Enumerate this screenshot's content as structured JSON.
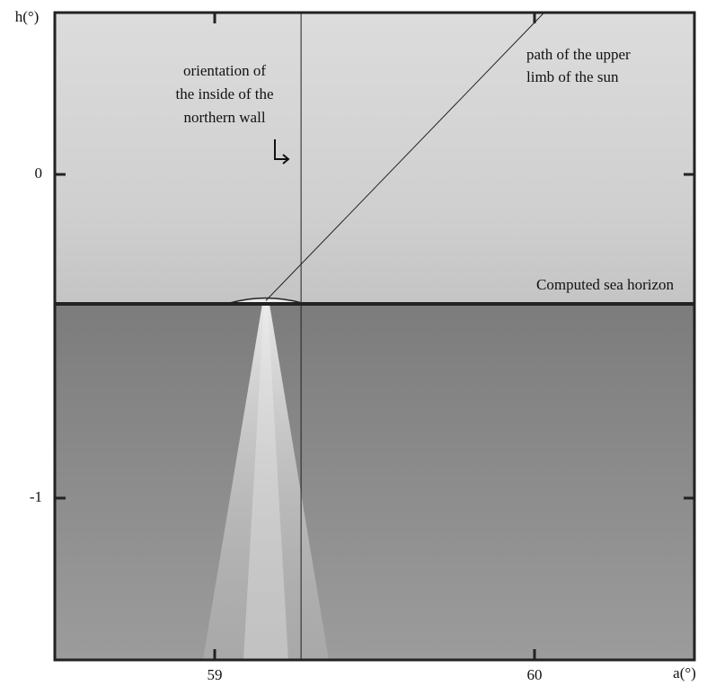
{
  "chart_data": {
    "type": "image-plot",
    "xlabel": "a(°)",
    "ylabel": "h(°)",
    "xlim": [
      58.5,
      60.5
    ],
    "ylim": [
      -1.5,
      0.5
    ],
    "xticks": [
      59,
      60
    ],
    "yticks": [
      0,
      -1
    ],
    "horizon": {
      "label": "Computed sea horizon",
      "h": -0.4
    },
    "wall": {
      "label": [
        "orientation  of",
        "the inside of the",
        "northern  wall"
      ],
      "azimuth": 59.27
    },
    "sun_path": {
      "label": [
        "path of the upper",
        "limb  of  the  sun"
      ],
      "x": [
        59.16,
        60.03
      ],
      "y": [
        -0.39,
        0.5
      ]
    }
  }
}
